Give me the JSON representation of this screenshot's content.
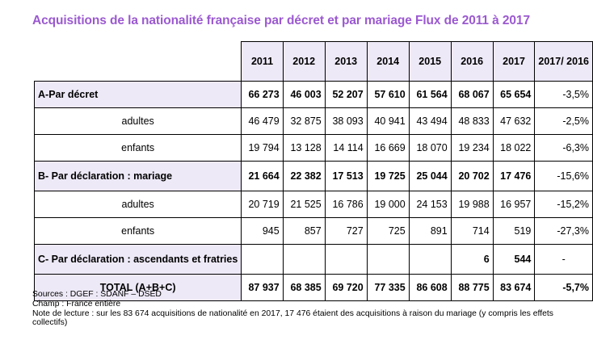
{
  "title": "Acquisitions de la nationalité française par décret et par mariage Flux de 2011 à 2017",
  "years": [
    "2011",
    "2012",
    "2013",
    "2014",
    "2015",
    "2016",
    "2017"
  ],
  "change_header": "2017/ 2016",
  "rows": [
    {
      "label": "A-Par décret",
      "kind": "main",
      "values": [
        "66 273",
        "46 003",
        "52 207",
        "57 610",
        "61 564",
        "68 067",
        "65 654"
      ],
      "change": "-3,5%"
    },
    {
      "label": "adultes",
      "kind": "sub",
      "values": [
        "46 479",
        "32 875",
        "38 093",
        "40 941",
        "43 494",
        "48 833",
        "47 632"
      ],
      "change": "-2,5%"
    },
    {
      "label": "enfants",
      "kind": "sub",
      "values": [
        "19 794",
        "13 128",
        "14 114",
        "16 669",
        "18 070",
        "19 234",
        "18 022"
      ],
      "change": "-6,3%"
    },
    {
      "label": "B- Par déclaration : mariage",
      "kind": "main",
      "values": [
        "21 664",
        "22 382",
        "17 513",
        "19 725",
        "25 044",
        "20 702",
        "17 476"
      ],
      "change": "-15,6%"
    },
    {
      "label": "adultes",
      "kind": "sub",
      "values": [
        "20 719",
        "21 525",
        "16 786",
        "19 000",
        "24 153",
        "19 988",
        "16 957"
      ],
      "change": "-15,2%"
    },
    {
      "label": "enfants",
      "kind": "sub",
      "values": [
        "945",
        "857",
        "727",
        "725",
        "891",
        "714",
        "519"
      ],
      "change": "-27,3%"
    },
    {
      "label": "C- Par déclaration : ascendants et fratries",
      "kind": "main",
      "values": [
        "",
        "",
        "",
        "",
        "",
        "6",
        "544"
      ],
      "change": "-"
    },
    {
      "label": "TOTAL (A+B+C)",
      "kind": "total",
      "values": [
        "87 937",
        "68 385",
        "69 720",
        "77 335",
        "86 608",
        "88 775",
        "83 674"
      ],
      "change": "-5,7%"
    }
  ],
  "notes": [
    "Sources : DGEF : SDANF – DSED",
    "Champ : France entière",
    "Note de lecture : sur les 83 674 acquisitions de nationalité en 2017, 17 476 étaient des acquisitions à raison du mariage (y compris les effets collectifs)"
  ]
}
